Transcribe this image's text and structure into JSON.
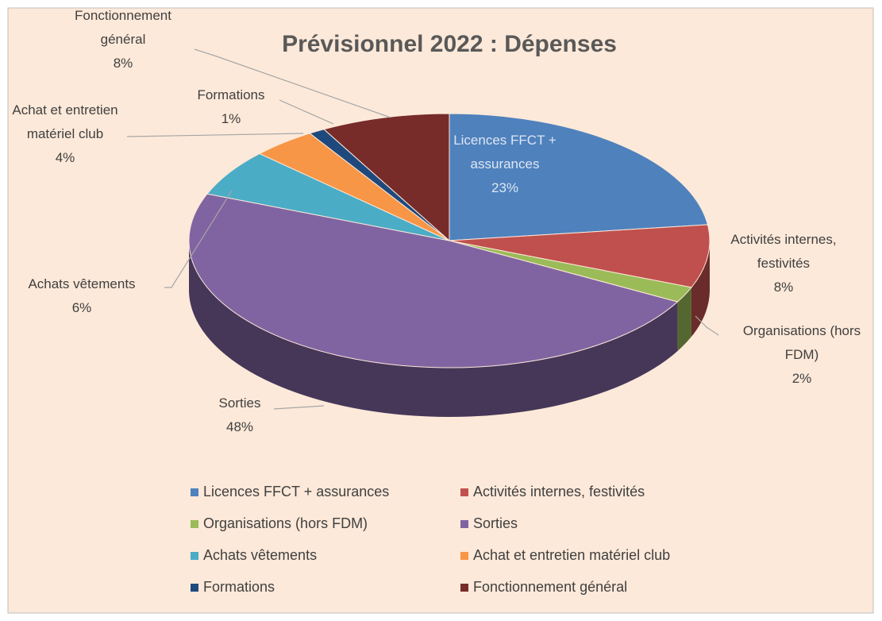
{
  "chart_data": {
    "type": "pie",
    "three_d": true,
    "title": "Prévisionnel  2022 :  Dépenses",
    "categories": [
      "Licences FFCT + assurances",
      "Activités internes, festivités",
      "Organisations (hors FDM)",
      "Sorties",
      "Achats vêtements",
      "Achat et entretien matériel club",
      "Formations",
      "Fonctionnement général"
    ],
    "values": [
      23,
      8,
      2,
      48,
      6,
      4,
      1,
      8
    ],
    "value_labels": [
      "23%",
      "8%",
      "2%",
      "48%",
      "6%",
      "4%",
      "1%",
      "8%"
    ],
    "colors": [
      "#4f81bd",
      "#c0504d",
      "#9bbb59",
      "#8064a2",
      "#4bacc6",
      "#f79646",
      "#1f497d",
      "#772c2a"
    ],
    "legend": "bottom"
  }
}
